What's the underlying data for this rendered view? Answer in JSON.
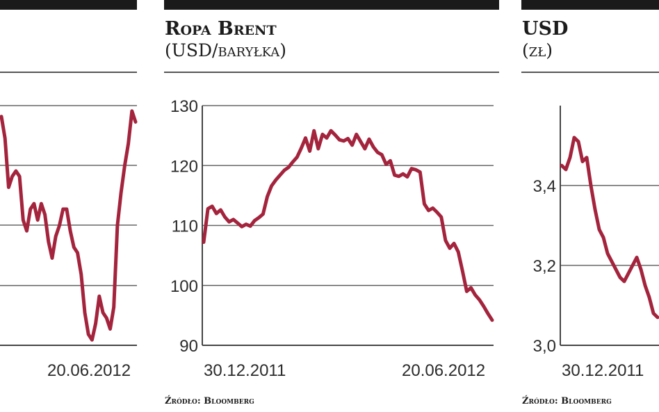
{
  "panels": [
    {
      "title": "",
      "subtitle": "",
      "source": "",
      "x_labels": [
        "",
        "20.06.2012"
      ]
    },
    {
      "title": "Ropa Brent",
      "subtitle": "(USD/baryłka)",
      "source": "Źródło: Bloomberg",
      "x_labels": [
        "30.12.2011",
        "20.06.2012"
      ]
    },
    {
      "title": "USD",
      "subtitle": "(zł)",
      "source": "Źródło: Bloomberg",
      "x_labels": [
        "30.12.2011",
        ""
      ]
    }
  ],
  "colors": {
    "line": "#a3243c",
    "grid": "#666666",
    "axis": "#444444",
    "text": "#2b2b2b"
  },
  "chart_data": [
    {
      "type": "line",
      "title": "",
      "ylabel": "",
      "yticks": [],
      "grid": true,
      "series": [
        {
          "values": [
            132,
            128,
            119,
            121,
            122,
            121,
            113,
            111,
            115,
            116,
            113,
            116,
            114,
            109,
            106,
            110,
            112,
            115,
            115,
            111,
            108,
            107,
            103,
            96,
            92,
            91,
            94,
            99,
            96,
            95,
            93,
            97,
            112,
            118,
            123,
            127,
            133,
            131
          ]
        }
      ]
    },
    {
      "type": "line",
      "title": "Ropa Brent",
      "ylabel": "USD/baryłka",
      "ylim": [
        90,
        130
      ],
      "yticks": [
        90,
        100,
        110,
        120,
        130
      ],
      "grid": true,
      "series": [
        {
          "values": [
            107.2,
            112.8,
            113.2,
            112.0,
            112.6,
            111.4,
            110.6,
            111.0,
            110.4,
            109.8,
            110.2,
            109.9,
            110.8,
            111.3,
            111.9,
            114.8,
            116.6,
            117.6,
            118.4,
            119.2,
            119.7,
            120.6,
            121.4,
            122.9,
            124.6,
            122.4,
            125.8,
            122.8,
            125.2,
            124.6,
            125.8,
            125.1,
            124.3,
            124.1,
            124.5,
            123.4,
            125.2,
            124.0,
            122.8,
            124.4,
            123.1,
            122.2,
            121.8,
            120.2,
            120.8,
            118.4,
            118.2,
            118.6,
            118.1,
            119.5,
            119.3,
            118.9,
            113.6,
            112.5,
            112.9,
            112.2,
            111.4,
            107.5,
            106.2,
            107.0,
            105.6,
            102.4,
            99.0,
            99.6,
            98.4,
            97.6,
            96.5,
            95.3,
            94.2
          ]
        }
      ]
    },
    {
      "type": "line",
      "title": "USD",
      "ylabel": "zł",
      "ylim": [
        3.0,
        3.6
      ],
      "yticks": [
        3.0,
        3.2,
        3.4
      ],
      "grid": true,
      "series": [
        {
          "values": [
            3.45,
            3.44,
            3.47,
            3.52,
            3.51,
            3.46,
            3.47,
            3.4,
            3.34,
            3.29,
            3.27,
            3.23,
            3.21,
            3.19,
            3.17,
            3.16,
            3.18,
            3.2,
            3.22,
            3.19,
            3.15,
            3.12,
            3.08,
            3.07
          ]
        }
      ]
    }
  ]
}
